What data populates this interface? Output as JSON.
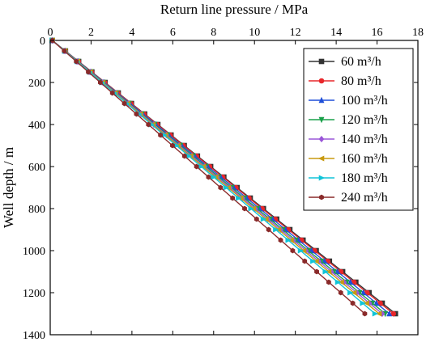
{
  "chart_data": {
    "type": "line",
    "title": "",
    "xlabel": "Return line pressure / MPa",
    "ylabel": "Well depth / m",
    "xlim": [
      0,
      18
    ],
    "ylim": [
      1400,
      0
    ],
    "x_axis_position": "top",
    "y_axis_inverted": true,
    "x_ticks": [
      "0",
      "2",
      "4",
      "6",
      "8",
      "10",
      "12",
      "14",
      "16",
      "18"
    ],
    "y_ticks": [
      "0",
      "200",
      "400",
      "600",
      "800",
      "1000",
      "1200",
      "1400"
    ],
    "grid": false,
    "legend_position": "top-right",
    "depth": [
      0,
      50,
      100,
      150,
      200,
      250,
      300,
      350,
      400,
      450,
      500,
      550,
      600,
      650,
      700,
      750,
      800,
      850,
      900,
      950,
      1000,
      1050,
      1100,
      1150,
      1200,
      1250,
      1300
    ],
    "series": [
      {
        "name": "60 m³/h",
        "color": "#333333",
        "marker": "square",
        "surface_pressure": 0.1,
        "bottom_pressure": 16.9
      },
      {
        "name": "80 m³/h",
        "color": "#e8262a",
        "marker": "circle",
        "surface_pressure": 0.1,
        "bottom_pressure": 16.8
      },
      {
        "name": "100 m³/h",
        "color": "#1f4fd8",
        "marker": "triangle-up",
        "surface_pressure": 0.1,
        "bottom_pressure": 16.6
      },
      {
        "name": "120 m³/h",
        "color": "#1aa04a",
        "marker": "triangle-down",
        "surface_pressure": 0.1,
        "bottom_pressure": 16.4
      },
      {
        "name": "140 m³/h",
        "color": "#9a56d8",
        "marker": "diamond",
        "surface_pressure": 0.1,
        "bottom_pressure": 16.25
      },
      {
        "name": "160 m³/h",
        "color": "#c89a10",
        "marker": "triangle-left",
        "surface_pressure": 0.1,
        "bottom_pressure": 16.1
      },
      {
        "name": "180 m³/h",
        "color": "#10c4d8",
        "marker": "triangle-right",
        "surface_pressure": 0.1,
        "bottom_pressure": 15.9
      },
      {
        "name": "240 m³/h",
        "color": "#8a2a2a",
        "marker": "hexagon",
        "surface_pressure": 0.1,
        "bottom_pressure": 15.4
      }
    ]
  }
}
